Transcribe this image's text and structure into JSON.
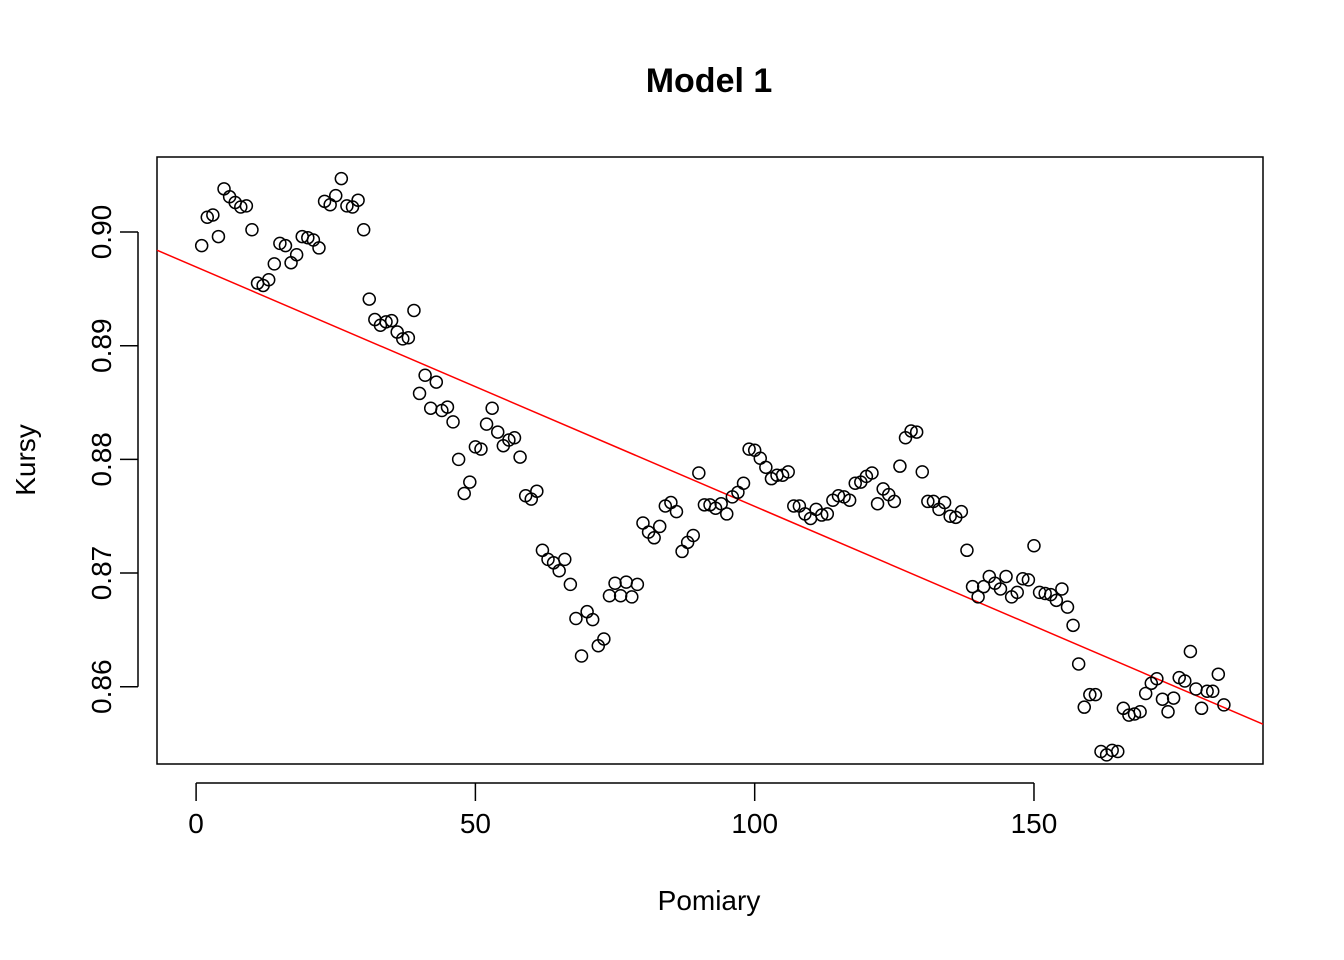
{
  "chart_data": {
    "type": "scatter",
    "title": "Model 1",
    "xlabel": "Pomiary",
    "ylabel": "Kursy",
    "xlim": [
      -7,
      191
    ],
    "ylim": [
      0.8532,
      0.9066
    ],
    "xticks": [
      0,
      50,
      100,
      150
    ],
    "xtick_labels": [
      "0",
      "50",
      "100",
      "150"
    ],
    "yticks": [
      0.86,
      0.87,
      0.88,
      0.89,
      0.9
    ],
    "ytick_labels": [
      "0.86",
      "0.87",
      "0.88",
      "0.89",
      "0.90"
    ],
    "grid": false,
    "point_color": "#000000",
    "line_color": "#ff0000",
    "series": [
      {
        "type": "scatter",
        "x": [
          1,
          2,
          3,
          4,
          5,
          6,
          7,
          8,
          9,
          10,
          11,
          12,
          13,
          14,
          15,
          16,
          17,
          18,
          19,
          20,
          21,
          22,
          23,
          24,
          25,
          26,
          27,
          28,
          29,
          30,
          31,
          32,
          33,
          34,
          35,
          36,
          37,
          38,
          39,
          40,
          41,
          42,
          43,
          44,
          45,
          46,
          47,
          48,
          49,
          50,
          51,
          52,
          53,
          54,
          55,
          56,
          57,
          58,
          59,
          60,
          61,
          62,
          63,
          64,
          65,
          66,
          67,
          68,
          69,
          70,
          71,
          72,
          73,
          74,
          75,
          76,
          77,
          78,
          79,
          80,
          81,
          82,
          83,
          84,
          85,
          86,
          87,
          88,
          89,
          90,
          91,
          92,
          93,
          94,
          95,
          96,
          97,
          98,
          99,
          100,
          101,
          102,
          103,
          104,
          105,
          106,
          107,
          108,
          109,
          110,
          111,
          112,
          113,
          114,
          115,
          116,
          117,
          118,
          119,
          120,
          121,
          122,
          123,
          124,
          125,
          126,
          127,
          128,
          129,
          130,
          131,
          132,
          133,
          134,
          135,
          136,
          137,
          138,
          139,
          140,
          141,
          142,
          143,
          144,
          145,
          146,
          147,
          148,
          149,
          150,
          151,
          152,
          153,
          154,
          155,
          156,
          157,
          158,
          159,
          160,
          161,
          162,
          163,
          164,
          165,
          166,
          167,
          168,
          169,
          170,
          171,
          172,
          173,
          174,
          175,
          176,
          177,
          178,
          179,
          180,
          181,
          182,
          183,
          184
        ],
        "y": [
          0.8988,
          0.9013,
          0.9015,
          0.8996,
          0.9038,
          0.9031,
          0.9026,
          0.9022,
          0.9023,
          0.9002,
          0.8955,
          0.8953,
          0.8958,
          0.8972,
          0.899,
          0.8988,
          0.8973,
          0.898,
          0.8996,
          0.8995,
          0.8993,
          0.8986,
          0.9027,
          0.9024,
          0.9032,
          0.9047,
          0.9023,
          0.9022,
          0.9028,
          0.9002,
          0.8941,
          0.8923,
          0.8918,
          0.8921,
          0.8922,
          0.8912,
          0.8906,
          0.8907,
          0.8931,
          0.8858,
          0.8874,
          0.8845,
          0.8868,
          0.8843,
          0.8846,
          0.8833,
          0.88,
          0.877,
          0.878,
          0.8811,
          0.8809,
          0.8831,
          0.8845,
          0.8824,
          0.8812,
          0.8817,
          0.8819,
          0.8802,
          0.8768,
          0.8765,
          0.8772,
          0.872,
          0.8712,
          0.8709,
          0.8702,
          0.8712,
          0.869,
          0.866,
          0.8627,
          0.8666,
          0.8659,
          0.8636,
          0.8642,
          0.868,
          0.8691,
          0.868,
          0.8692,
          0.8679,
          0.869,
          0.8744,
          0.8736,
          0.8731,
          0.8741,
          0.8759,
          0.8762,
          0.8754,
          0.8719,
          0.8727,
          0.8733,
          0.8788,
          0.876,
          0.876,
          0.8757,
          0.8761,
          0.8752,
          0.8767,
          0.8771,
          0.8779,
          0.8809,
          0.8808,
          0.8801,
          0.8793,
          0.8783,
          0.8786,
          0.8786,
          0.8789,
          0.8759,
          0.8759,
          0.8752,
          0.8748,
          0.8756,
          0.8751,
          0.8752,
          0.8764,
          0.8768,
          0.8767,
          0.8764,
          0.8779,
          0.878,
          0.8785,
          0.8788,
          0.8761,
          0.8774,
          0.8769,
          0.8763,
          0.8794,
          0.8819,
          0.8825,
          0.8824,
          0.8789,
          0.8763,
          0.8763,
          0.8756,
          0.8762,
          0.875,
          0.8749,
          0.8754,
          0.872,
          0.8688,
          0.8679,
          0.8688,
          0.8697,
          0.8691,
          0.8686,
          0.8697,
          0.8679,
          0.8683,
          0.8695,
          0.8694,
          0.8724,
          0.8683,
          0.8682,
          0.8681,
          0.8676,
          0.8686,
          0.867,
          0.8654,
          0.862,
          0.8582,
          0.8593,
          0.8593,
          0.8543,
          0.854,
          0.8544,
          0.8543,
          0.8581,
          0.8575,
          0.8576,
          0.8578,
          0.8594,
          0.8603,
          0.8607,
          0.8589,
          0.8578,
          0.859,
          0.8608,
          0.8605,
          0.8631,
          0.8598,
          0.8581,
          0.8596,
          0.8596,
          0.8611,
          0.8584
        ]
      },
      {
        "type": "line",
        "x": [
          -7,
          191
        ],
        "y": [
          0.8984,
          0.8567
        ]
      }
    ]
  }
}
